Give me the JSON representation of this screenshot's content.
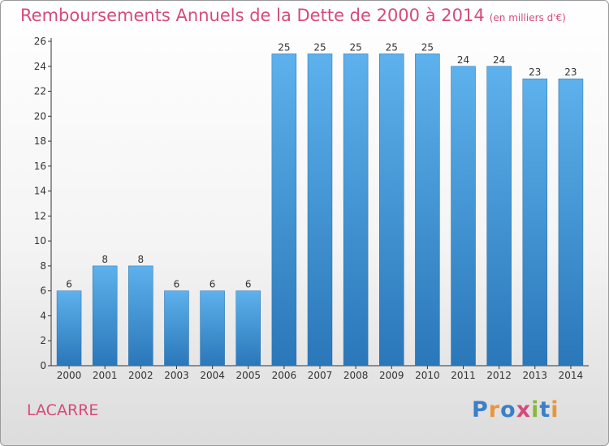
{
  "chart_data": {
    "type": "bar",
    "title": "Remboursements Annuels de la Dette de 2000 à 2014",
    "subtitle": "(en milliers d'€)",
    "categories": [
      "2000",
      "2001",
      "2002",
      "2003",
      "2004",
      "2005",
      "2006",
      "2007",
      "2008",
      "2009",
      "2010",
      "2011",
      "2012",
      "2013",
      "2014"
    ],
    "values": [
      6,
      8,
      8,
      6,
      6,
      6,
      25,
      25,
      25,
      25,
      25,
      24,
      24,
      23,
      23
    ],
    "data_labels": [
      "6",
      "8",
      "8",
      "6",
      "6",
      "6",
      "25",
      "25",
      "25",
      "25",
      "25",
      "24",
      "24",
      "23",
      "23"
    ],
    "ylim": [
      0,
      26
    ],
    "yticks": [
      0,
      2,
      4,
      6,
      8,
      10,
      12,
      14,
      16,
      18,
      20,
      22,
      24,
      26
    ],
    "ytick_labels": [
      "0",
      "2",
      "4",
      "6",
      "8",
      "10",
      "12",
      "14",
      "16",
      "18",
      "20",
      "22",
      "24",
      "26"
    ],
    "xlabel": "",
    "ylabel": "",
    "grid": false,
    "legend": "none",
    "bar_color": "#3d8fd1",
    "title_color": "#d64a7a"
  },
  "commune": "LACARRE",
  "brand": {
    "name": "Proxiti",
    "letters": [
      {
        "char": "P",
        "color": "#3a7fc8"
      },
      {
        "char": "r",
        "color": "#e8963a"
      },
      {
        "char": "o",
        "color": "#3a7fc8"
      },
      {
        "char": "x",
        "color": "#d64a7a"
      },
      {
        "char": "i",
        "color": "#8ab83a"
      },
      {
        "char": "t",
        "color": "#3a7fc8"
      },
      {
        "char": "i",
        "color": "#e8963a"
      }
    ]
  }
}
